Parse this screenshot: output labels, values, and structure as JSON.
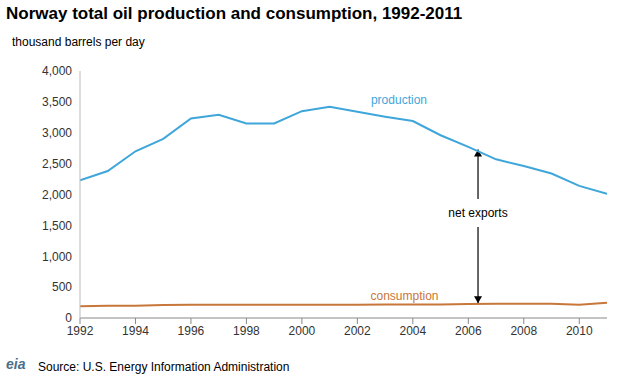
{
  "chart_data": {
    "type": "line",
    "title": "Norway total oil production and consumption, 1992-2011",
    "subtitle": "thousand barrels per day",
    "source": "Source: U.S. Energy Information Administration",
    "logo": "eia",
    "x": [
      1992,
      1993,
      1994,
      1995,
      1996,
      1997,
      1998,
      1999,
      2000,
      2001,
      2002,
      2003,
      2004,
      2005,
      2006,
      2007,
      2008,
      2009,
      2010,
      2011
    ],
    "series": [
      {
        "name": "production",
        "color": "#3fa6da",
        "values": [
          2230,
          2380,
          2700,
          2900,
          3230,
          3290,
          3150,
          3150,
          3350,
          3420,
          3340,
          3260,
          3190,
          2960,
          2770,
          2570,
          2460,
          2340,
          2140,
          2010
        ]
      },
      {
        "name": "consumption",
        "color": "#c8773a",
        "values": [
          190,
          200,
          200,
          210,
          215,
          215,
          215,
          215,
          215,
          215,
          215,
          220,
          220,
          220,
          225,
          230,
          230,
          230,
          215,
          245
        ]
      }
    ],
    "xlim": [
      1992,
      2011
    ],
    "xticks": [
      1992,
      1994,
      1996,
      1998,
      2000,
      2002,
      2004,
      2006,
      2008,
      2010
    ],
    "ylim": [
      0,
      4000
    ],
    "yticks": [
      0,
      500,
      {
        "value": 1000,
        "label": "1,000"
      },
      {
        "value": 1500,
        "label": "1,500"
      },
      {
        "value": 2000,
        "label": "2,000"
      },
      {
        "value": 2500,
        "label": "2,500"
      },
      {
        "value": 3000,
        "label": "3,000"
      },
      {
        "value": 3500,
        "label": "3,500"
      },
      {
        "value": 4000,
        "label": "4,000"
      }
    ],
    "grid": false,
    "annotations": [
      {
        "text": "production",
        "x": 2003.5,
        "y": 3530,
        "color": "#3fa6da"
      },
      {
        "text": "consumption",
        "x": 2003.7,
        "y": 356,
        "color": "#c8773a"
      },
      {
        "text": "net exports",
        "x": 2006.35,
        "y": 1700,
        "y_from": 240,
        "y_to": 2730,
        "color": "#000000"
      }
    ]
  }
}
